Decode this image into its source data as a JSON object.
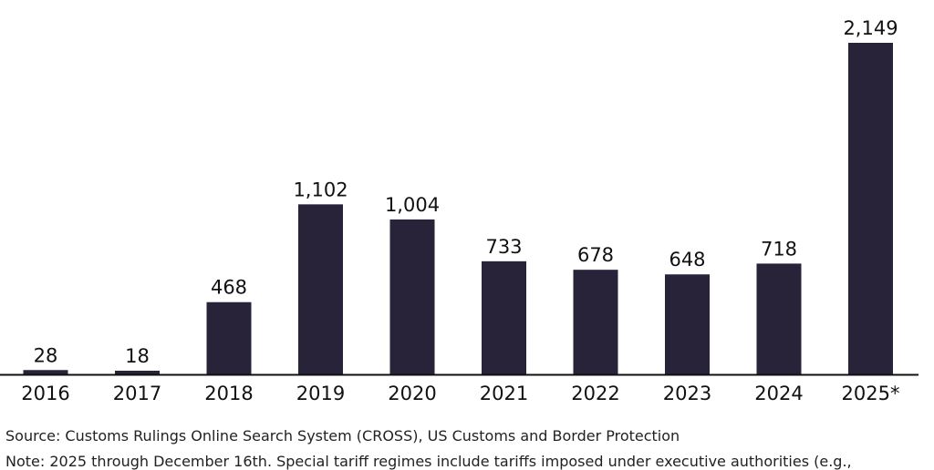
{
  "chart_data": {
    "type": "bar",
    "title": "",
    "xlabel": "",
    "ylabel": "",
    "categories": [
      "2016",
      "2017",
      "2018",
      "2019",
      "2020",
      "2021",
      "2022",
      "2023",
      "2024",
      "2025*"
    ],
    "values": [
      28,
      18,
      468,
      1102,
      1004,
      733,
      678,
      648,
      718,
      2149
    ],
    "value_labels": [
      "28",
      "18",
      "468",
      "1,102",
      "1,004",
      "733",
      "678",
      "648",
      "718",
      "2,149"
    ],
    "ylim": [
      0,
      2149
    ],
    "grid": false,
    "bar_color": "#29233a",
    "axis_color": "#111111"
  },
  "footer": {
    "source": "Source: Customs Rulings Online Search System (CROSS), US Customs and Border Protection",
    "note": "Note: 2025 through December 16th. Special tariff regimes include tariffs imposed under executive authorities (e.g.,"
  }
}
